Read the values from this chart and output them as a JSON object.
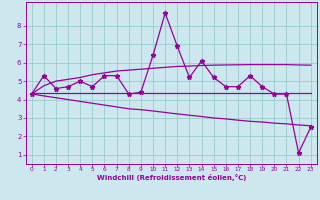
{
  "x": [
    0,
    1,
    2,
    3,
    4,
    5,
    6,
    7,
    8,
    9,
    10,
    11,
    12,
    13,
    14,
    15,
    16,
    17,
    18,
    19,
    20,
    21,
    22,
    23
  ],
  "y_main": [
    4.3,
    5.3,
    4.6,
    4.7,
    5.0,
    4.7,
    5.3,
    5.3,
    4.3,
    4.4,
    6.4,
    8.7,
    6.9,
    5.2,
    6.1,
    5.2,
    4.7,
    4.7,
    5.3,
    4.7,
    4.3,
    4.3,
    1.1,
    2.5
  ],
  "y_upper": [
    4.3,
    4.75,
    5.0,
    5.1,
    5.2,
    5.35,
    5.45,
    5.55,
    5.6,
    5.65,
    5.7,
    5.75,
    5.8,
    5.82,
    5.85,
    5.87,
    5.88,
    5.89,
    5.9,
    5.9,
    5.9,
    5.9,
    5.88,
    5.87
  ],
  "y_flat": [
    4.35,
    4.35,
    4.35,
    4.35,
    4.35,
    4.35,
    4.35,
    4.35,
    4.35,
    4.35,
    4.35,
    4.35,
    4.35,
    4.35,
    4.35,
    4.35,
    4.35,
    4.35,
    4.35,
    4.35,
    4.35,
    4.35,
    4.35,
    4.35
  ],
  "y_lower": [
    4.3,
    4.2,
    4.1,
    4.0,
    3.9,
    3.8,
    3.7,
    3.6,
    3.5,
    3.45,
    3.38,
    3.3,
    3.22,
    3.15,
    3.08,
    3.0,
    2.95,
    2.88,
    2.82,
    2.78,
    2.72,
    2.68,
    2.62,
    2.58
  ],
  "line_color": "#990099",
  "bg_color": "#cce8ee",
  "grid_color": "#99cccc",
  "xlabel": "Windchill (Refroidissement éolien,°C)",
  "ylim": [
    0.5,
    9.3
  ],
  "xlim": [
    -0.5,
    23.5
  ],
  "yticks": [
    1,
    2,
    3,
    4,
    5,
    6,
    7,
    8
  ],
  "xticks": [
    0,
    1,
    2,
    3,
    4,
    5,
    6,
    7,
    8,
    9,
    10,
    11,
    12,
    13,
    14,
    15,
    16,
    17,
    18,
    19,
    20,
    21,
    22,
    23
  ]
}
